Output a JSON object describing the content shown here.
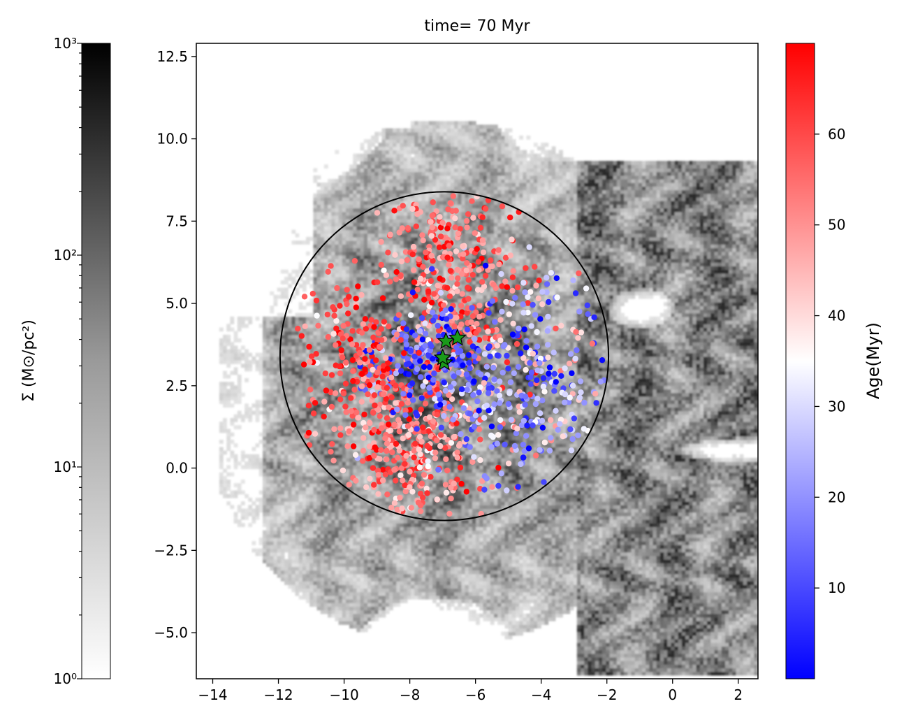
{
  "chart_data": {
    "type": "scatter",
    "title": "time= 70 Myr",
    "xlabel": "",
    "ylabel": "",
    "xlim": [
      -14.5,
      2.6
    ],
    "ylim": [
      -6.4,
      12.9
    ],
    "xticks": [
      {
        "value": -14,
        "label": "−14"
      },
      {
        "value": -12,
        "label": "−12"
      },
      {
        "value": -10,
        "label": "−10"
      },
      {
        "value": -8,
        "label": "−8"
      },
      {
        "value": -6,
        "label": "−6"
      },
      {
        "value": -4,
        "label": "−4"
      },
      {
        "value": -2,
        "label": "−2"
      },
      {
        "value": 0,
        "label": "0"
      },
      {
        "value": 2,
        "label": "2"
      }
    ],
    "yticks": [
      {
        "value": -5.0,
        "label": "−5.0"
      },
      {
        "value": -2.5,
        "label": "−2.5"
      },
      {
        "value": 0.0,
        "label": "0.0"
      },
      {
        "value": 2.5,
        "label": "2.5"
      },
      {
        "value": 5.0,
        "label": "5.0"
      },
      {
        "value": 7.5,
        "label": "7.5"
      },
      {
        "value": 10.0,
        "label": "10.0"
      },
      {
        "value": 12.5,
        "label": "12.5"
      }
    ],
    "grid": false,
    "background": {
      "type": "heatmap",
      "quantity": "surface density",
      "colormap": "greys",
      "scale": "log",
      "range": [
        1,
        1000
      ]
    },
    "aperture_circle": {
      "center": [
        -6.95,
        3.4
      ],
      "radius": 5.0
    },
    "scatter_points": {
      "count": 1500,
      "color_by": "age",
      "clusters": [
        {
          "x": -6.8,
          "y": 5.8,
          "sx": 1.1,
          "sy": 1.4,
          "n": 380,
          "age_mean": 55,
          "age_sd": 9
        },
        {
          "x": -8.0,
          "y": 0.8,
          "sx": 1.2,
          "sy": 1.2,
          "n": 420,
          "age_mean": 52,
          "age_sd": 10
        },
        {
          "x": -4.6,
          "y": 2.6,
          "sx": 1.3,
          "sy": 1.5,
          "n": 350,
          "age_mean": 25,
          "age_sd": 15
        },
        {
          "x": -7.4,
          "y": 3.1,
          "sx": 0.9,
          "sy": 0.8,
          "n": 180,
          "age_mean": 10,
          "age_sd": 7
        },
        {
          "x": -9.6,
          "y": 3.6,
          "sx": 0.9,
          "sy": 1.2,
          "n": 170,
          "age_mean": 60,
          "age_sd": 8
        }
      ]
    },
    "special_markers": [
      {
        "x": -6.9,
        "y": 3.85,
        "shape": "star",
        "color": "#1a9a1a"
      },
      {
        "x": -6.55,
        "y": 3.95,
        "shape": "star",
        "color": "#1a9a1a"
      },
      {
        "x": -6.95,
        "y": 3.2,
        "shape": "star",
        "color": "#1a9a1a"
      },
      {
        "x": -7.0,
        "y": 3.35,
        "shape": "star",
        "color": "#1a9a1a"
      }
    ],
    "colorbars": [
      {
        "label": "Σ (M⊙/pc²)",
        "scale": "log",
        "range": [
          1,
          1000
        ],
        "colormap": "greys",
        "tick_labels": [
          "10⁰",
          "10¹",
          "10²",
          "10³"
        ]
      },
      {
        "label": "Age(Myr)",
        "scale": "linear",
        "range": [
          0,
          70
        ],
        "colormap": "bwr",
        "tick_labels": [
          "10",
          "20",
          "30",
          "40",
          "50",
          "60"
        ]
      }
    ]
  },
  "colors": {
    "low_age": "#0000ff",
    "mid_age": "#ffffff",
    "high_age": "#ff0000",
    "marker_green": "#1a9a1a"
  }
}
